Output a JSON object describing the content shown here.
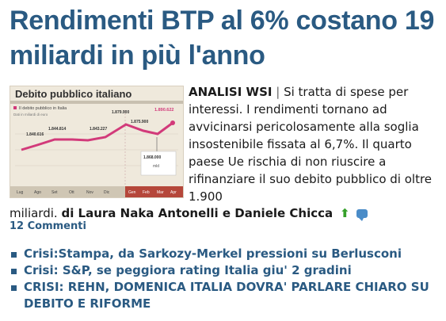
{
  "headline": "Rendimenti BTP al 6% costano 19 miliardi in più l'anno",
  "thumbnail": {
    "title": "Debito pubblico italiano",
    "legend": "Il debito pubblico in Italia",
    "unit_note": "Dati in miliardi di euro",
    "labels": [
      "1.840.616",
      "1.844.814",
      "1.843.227",
      "1.879.900",
      "1.875.900",
      "1.890.622",
      "1.868.000"
    ],
    "note": "mld",
    "months": [
      "Lug",
      "Ago",
      "Set",
      "Ott",
      "Nov",
      "Dic",
      "Gen",
      "Feb",
      "Mar",
      "Apr"
    ]
  },
  "article": {
    "label": "ANALISI WSI",
    "separator": "|",
    "text": "Si tratta di spese per interessi. I rendimenti tornano ad avvicinarsi pericolosamente alla soglia insostenibile fissata al 6,7%. Il quarto paese Ue rischia di non riuscire a rifinanziare il suo debito pubblico di oltre 1.900",
    "text_end": "miliardi.",
    "byline": "di Laura Naka Antonelli e Daniele Chicca",
    "comments": "12 Commenti"
  },
  "related": [
    "Crisi:Stampa, da Sarkozy-Merkel pressioni su Berlusconi",
    "Crisi: S&P, se peggiora rating Italia giu' 2 gradini",
    "CRISI: REHN, DOMENICA ITALIA DOVRA' PARLARE CHIARO SU DEBITO E RIFORME"
  ],
  "colors": {
    "headline": "#2a5a82",
    "link": "#2a5a82",
    "chart_line": "#d23a7a",
    "up_arrow": "#36a02a"
  }
}
